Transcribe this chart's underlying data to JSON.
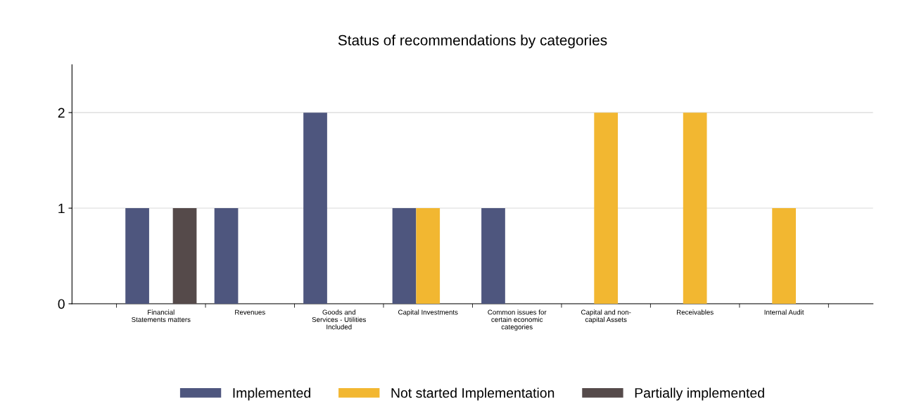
{
  "chart_data": {
    "type": "bar",
    "title": "Status of recommendations by categories",
    "categories": [
      "Financial\nStatements matters",
      "Revenues",
      "Goods and\nServices - Utilities\nIncluded",
      "Capital Investments",
      "Common issues for\ncertain economic\ncategories",
      "Capital and non-\ncapital Assets",
      "Receivables",
      "Internal Audit"
    ],
    "series": [
      {
        "name": "Implemented",
        "color": "#4e567e",
        "values": [
          1,
          1,
          2,
          1,
          1,
          0,
          0,
          0
        ]
      },
      {
        "name": "Not started Implementation",
        "color": "#f2b731",
        "values": [
          0,
          0,
          0,
          1,
          0,
          2,
          2,
          1
        ]
      },
      {
        "name": "Partially implemented",
        "color": "#554a4a",
        "values": [
          1,
          0,
          0,
          0,
          0,
          0,
          0,
          0
        ]
      }
    ],
    "ylim": [
      0,
      2.5
    ],
    "yticks": [
      0,
      1,
      2
    ],
    "grid": "y",
    "legend": "bottom"
  }
}
